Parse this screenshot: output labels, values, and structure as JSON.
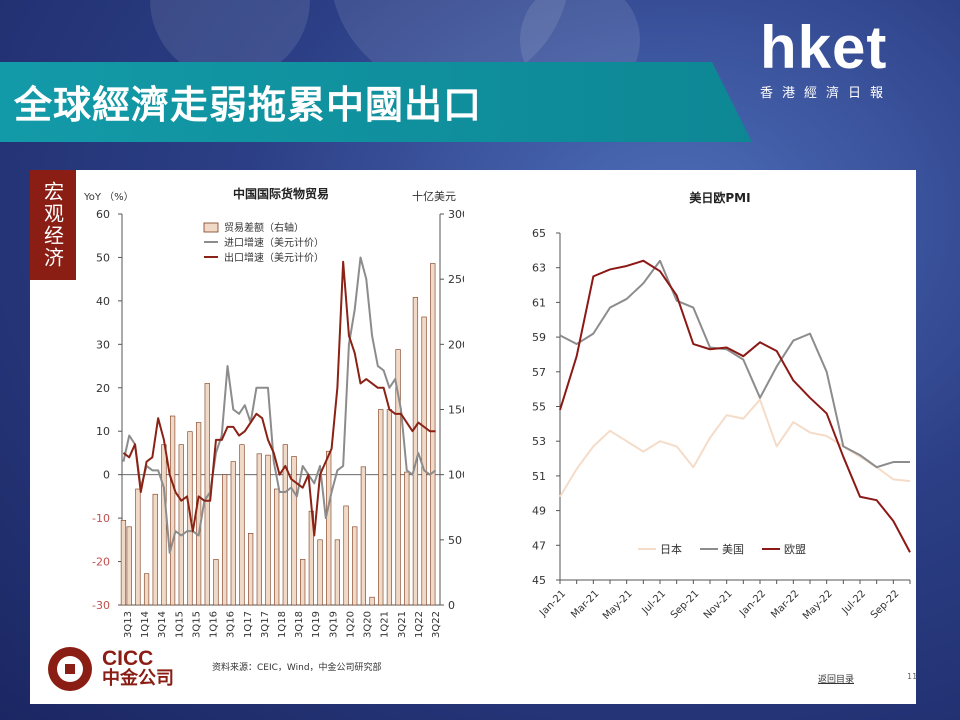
{
  "header": {
    "title": "全球經濟走弱拖累中國出口"
  },
  "logo": {
    "main": "hket",
    "sub": "香港經濟日報"
  },
  "side_tab": {
    "label": "宏观经济"
  },
  "footer": {
    "brand_en": "CICC",
    "brand_cn": "中金公司",
    "source": "资料来源：CEIC，Wind，中金公司研究部",
    "back_link": "返回目录",
    "page_number": "11"
  },
  "colors": {
    "banner": "#139aa8",
    "brand_red": "#8a1d14",
    "bar_fill": "#f0d9c6",
    "bar_stroke": "#7a3a1c",
    "import_line": "#8c8c8c",
    "export_line": "#8b2216",
    "japan_line": "#f5dcc8",
    "us_line": "#8c8c8c",
    "eu_line": "#8b1a16"
  },
  "chart_data": [
    {
      "type": "bar+line",
      "title": "中国国际货物贸易",
      "left_axis_label": "YoY （%）",
      "right_axis_label": "十亿美元",
      "ylim_left": [
        -30,
        60
      ],
      "ylim_right": [
        0,
        300
      ],
      "yticks_left": [
        60,
        50,
        40,
        30,
        20,
        10,
        0,
        -10,
        -20,
        -30
      ],
      "yticks_right": [
        300,
        250,
        200,
        150,
        100,
        50,
        0
      ],
      "x_tick_labels": [
        "3Q13",
        "1Q14",
        "3Q14",
        "1Q15",
        "3Q15",
        "1Q16",
        "3Q16",
        "1Q17",
        "3Q17",
        "1Q18",
        "3Q18",
        "1Q19",
        "3Q19",
        "1Q20",
        "3Q20",
        "1Q21",
        "3Q21",
        "1Q22",
        "3Q22"
      ],
      "x_count": 110,
      "legend": [
        "贸易差额（右轴）",
        "进口增速（美元计价）",
        "出口增速（美元计价）"
      ],
      "series": [
        {
          "name": "贸易差额（右轴）",
          "kind": "bar",
          "axis": "right",
          "x": [
            0,
            2,
            5,
            8,
            11,
            14,
            17,
            20,
            23,
            26,
            29,
            32,
            35,
            38,
            41,
            44,
            47,
            50,
            53,
            56,
            59,
            62,
            65,
            68,
            71,
            74,
            77,
            80,
            83,
            86,
            89,
            92,
            95,
            98,
            101,
            104,
            107
          ],
          "values": [
            65,
            60,
            89,
            24,
            85,
            123,
            145,
            123,
            133,
            140,
            170,
            35,
            100,
            110,
            123,
            55,
            116,
            115,
            89,
            123,
            114,
            35,
            72,
            50,
            118,
            50,
            76,
            60,
            106,
            6,
            150,
            150,
            196,
            102,
            236,
            221,
            262
          ]
        },
        {
          "name": "进口增速（美元计价）",
          "kind": "line",
          "axis": "left",
          "x": [
            0,
            2,
            4,
            6,
            8,
            10,
            12,
            14,
            16,
            18,
            20,
            22,
            24,
            26,
            28,
            30,
            32,
            34,
            36,
            38,
            40,
            42,
            44,
            46,
            48,
            50,
            52,
            54,
            56,
            58,
            60,
            62,
            64,
            66,
            68,
            70,
            72,
            74,
            76,
            78,
            80,
            82,
            84,
            86,
            88,
            90,
            92,
            94,
            96,
            98,
            100,
            102,
            104,
            106,
            108
          ],
          "values": [
            3,
            9,
            7,
            -3,
            2,
            1,
            1,
            -3,
            -18,
            -13,
            -14,
            -13,
            -13,
            -14,
            -6,
            -4,
            5,
            9,
            25,
            15,
            14,
            16,
            12,
            20,
            20,
            20,
            3,
            -4,
            -4,
            -3,
            -5,
            2,
            0,
            -2,
            2,
            -10,
            -4,
            1,
            2,
            30,
            38,
            50,
            45,
            32,
            25,
            24,
            20,
            22,
            15,
            1,
            0,
            5,
            1,
            0,
            1
          ]
        },
        {
          "name": "出口增速（美元计价）",
          "kind": "line",
          "axis": "left",
          "x": [
            0,
            2,
            4,
            6,
            8,
            10,
            12,
            14,
            16,
            18,
            20,
            22,
            24,
            26,
            28,
            30,
            32,
            34,
            36,
            38,
            40,
            42,
            44,
            46,
            48,
            50,
            52,
            54,
            56,
            58,
            60,
            62,
            64,
            66,
            68,
            70,
            72,
            74,
            76,
            78,
            80,
            82,
            84,
            86,
            88,
            90,
            92,
            94,
            96,
            98,
            100,
            102,
            104,
            106,
            108
          ],
          "values": [
            5,
            4,
            7,
            -4,
            3,
            4,
            13,
            8,
            0,
            -4,
            -6,
            -5,
            -13,
            -5,
            -6,
            -6,
            8,
            8,
            11,
            11,
            9,
            10,
            12,
            14,
            13,
            8,
            5,
            0,
            2,
            -1,
            -2,
            -3,
            0,
            -14,
            0,
            3,
            6,
            20,
            49,
            32,
            28,
            21,
            22,
            21,
            20,
            20,
            15,
            14,
            14,
            12,
            10,
            12,
            11,
            10,
            10
          ]
        }
      ]
    },
    {
      "type": "line",
      "title": "美日欧PMI",
      "ylim": [
        45,
        65
      ],
      "yticks": [
        65,
        63,
        61,
        59,
        57,
        55,
        53,
        51,
        49,
        47,
        45
      ],
      "categories": [
        "Jan-21",
        "Feb-21",
        "Mar-21",
        "Apr-21",
        "May-21",
        "Jun-21",
        "Jul-21",
        "Aug-21",
        "Sep-21",
        "Oct-21",
        "Nov-21",
        "Dec-21",
        "Jan-22",
        "Feb-22",
        "Mar-22",
        "Apr-22",
        "May-22",
        "Jun-22",
        "Jul-22",
        "Aug-22",
        "Sep-22",
        "Oct-22"
      ],
      "x_tick_labels": [
        "Jan-21",
        "Mar-21",
        "May-21",
        "Jul-21",
        "Sep-21",
        "Nov-21",
        "Jan-22",
        "Mar-22",
        "May-22",
        "Jul-22",
        "Sep-22"
      ],
      "legend": [
        "日本",
        "美国",
        "欧盟"
      ],
      "series": [
        {
          "name": "日本",
          "values": [
            49.8,
            51.4,
            52.7,
            53.6,
            53.0,
            52.4,
            53.0,
            52.7,
            51.5,
            53.2,
            54.5,
            54.3,
            55.4,
            52.7,
            54.1,
            53.5,
            53.3,
            52.7,
            52.1,
            51.5,
            50.8,
            50.7
          ]
        },
        {
          "name": "美国",
          "values": [
            59.1,
            58.6,
            59.2,
            60.7,
            61.2,
            62.1,
            63.4,
            61.1,
            60.7,
            58.4,
            58.3,
            57.7,
            55.5,
            57.3,
            58.8,
            59.2,
            57.0,
            52.7,
            52.2,
            51.5,
            51.8,
            51.8
          ]
        },
        {
          "name": "欧盟",
          "values": [
            54.8,
            57.9,
            62.5,
            62.9,
            63.1,
            63.4,
            62.8,
            61.4,
            58.6,
            58.3,
            58.4,
            57.9,
            58.7,
            58.2,
            56.5,
            55.5,
            54.6,
            52.1,
            49.8,
            49.6,
            48.4,
            46.6
          ]
        }
      ]
    }
  ]
}
